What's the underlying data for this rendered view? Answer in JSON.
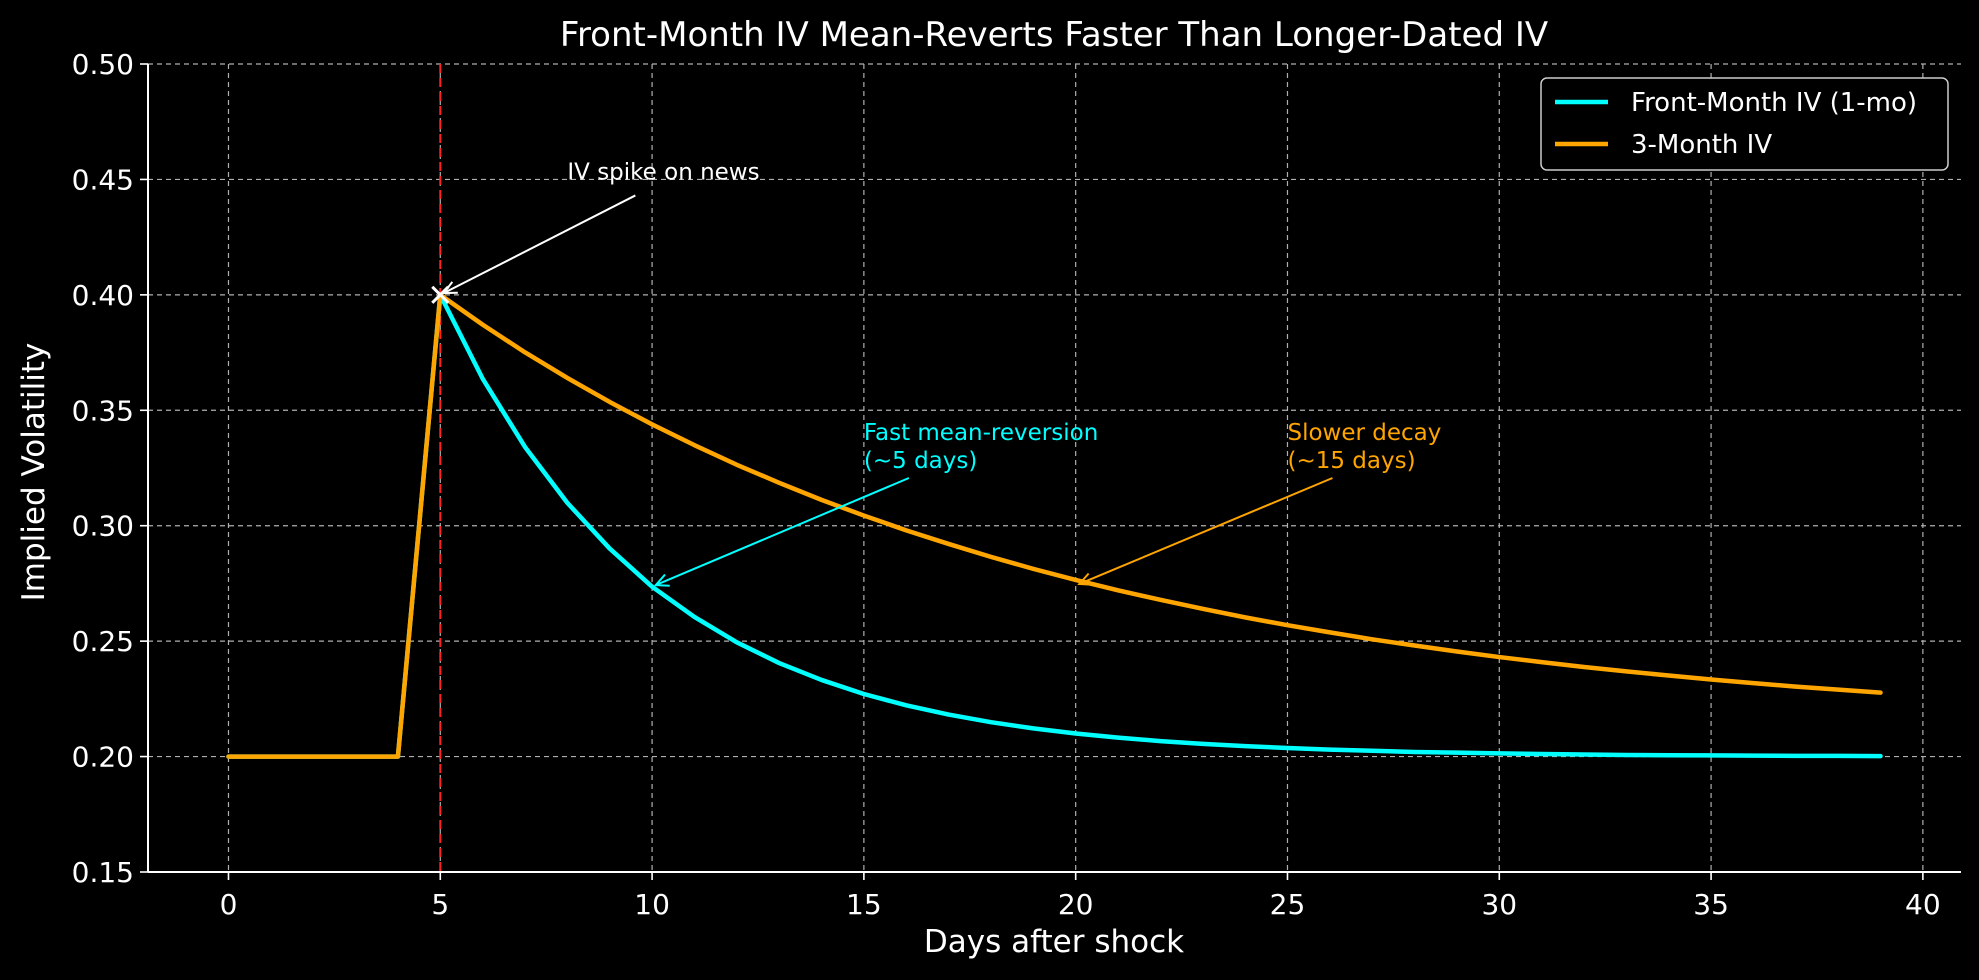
{
  "chart_data": {
    "type": "line",
    "title": "Front-Month IV Mean-Reverts Faster Than Longer-Dated IV",
    "xlabel": "Days after shock",
    "ylabel": "Implied Volatility",
    "xlim": [
      -1.9,
      40.9
    ],
    "ylim": [
      0.15,
      0.5
    ],
    "xticks": [
      0,
      5,
      10,
      15,
      20,
      25,
      30,
      35,
      40
    ],
    "yticks": [
      0.15,
      0.2,
      0.25,
      0.3,
      0.35,
      0.4,
      0.45,
      0.5
    ],
    "xtick_labels": [
      "0",
      "5",
      "10",
      "15",
      "20",
      "25",
      "30",
      "35",
      "40"
    ],
    "ytick_labels": [
      "0.15",
      "0.20",
      "0.25",
      "0.30",
      "0.35",
      "0.40",
      "0.45",
      "0.50"
    ],
    "grid": true,
    "legend_position": "top-right",
    "background": "#000000",
    "series": [
      {
        "name": "Front-Month IV (1-mo)",
        "color": "#00ffff",
        "x": [
          0,
          1,
          2,
          3,
          4,
          5,
          6,
          7,
          8,
          9,
          10,
          11,
          12,
          13,
          14,
          15,
          16,
          17,
          18,
          19,
          20,
          21,
          22,
          23,
          24,
          25,
          26,
          27,
          28,
          29,
          30,
          31,
          32,
          33,
          34,
          35,
          36,
          37,
          38,
          39
        ],
        "y": [
          0.2,
          0.2,
          0.2,
          0.2,
          0.2,
          0.4,
          0.3637,
          0.3341,
          0.3099,
          0.2901,
          0.2736,
          0.2605,
          0.2495,
          0.2405,
          0.2332,
          0.2271,
          0.2222,
          0.2182,
          0.2149,
          0.2122,
          0.21,
          0.2082,
          0.2067,
          0.2055,
          0.2045,
          0.2037,
          0.203,
          0.2025,
          0.202,
          0.2017,
          0.2014,
          0.2011,
          0.2009,
          0.2007,
          0.2006,
          0.2005,
          0.2004,
          0.2003,
          0.2003,
          0.2002
        ]
      },
      {
        "name": "3-Month IV",
        "color": "#ffa500",
        "x": [
          0,
          1,
          2,
          3,
          4,
          5,
          6,
          7,
          8,
          9,
          10,
          11,
          12,
          13,
          14,
          15,
          16,
          17,
          18,
          19,
          20,
          21,
          22,
          23,
          24,
          25,
          26,
          27,
          28,
          29,
          30,
          31,
          32,
          33,
          34,
          35,
          36,
          37,
          38,
          39
        ],
        "y": [
          0.2,
          0.2,
          0.2,
          0.2,
          0.2,
          0.4,
          0.3871,
          0.3751,
          0.364,
          0.3536,
          0.3439,
          0.3349,
          0.3264,
          0.3186,
          0.3112,
          0.3044,
          0.298,
          0.2921,
          0.2865,
          0.2813,
          0.2765,
          0.272,
          0.2679,
          0.264,
          0.2603,
          0.2569,
          0.2538,
          0.2508,
          0.2481,
          0.2455,
          0.2431,
          0.2409,
          0.2388,
          0.2369,
          0.2351,
          0.2334,
          0.2318,
          0.2303,
          0.229,
          0.2277
        ]
      }
    ],
    "reference_line": {
      "x": 5,
      "color": "#ff2020",
      "style": "dashed"
    },
    "marker": {
      "x": 5,
      "y": 0.4,
      "symbol": "x",
      "color": "#ffffff"
    },
    "annotations": [
      {
        "id": "spike",
        "lines": [
          "IV spike on news"
        ],
        "color": "#ffffff",
        "text_x": 8,
        "text_y": 0.45,
        "arrow_to": [
          5,
          0.4
        ]
      },
      {
        "id": "fast",
        "lines": [
          "Fast mean-reversion",
          "(~5 days)"
        ],
        "color": "#00ffff",
        "text_x": 15,
        "text_y": 0.325,
        "arrow_to": [
          10,
          0.2736
        ]
      },
      {
        "id": "slow",
        "lines": [
          "Slower decay",
          "(~15 days)"
        ],
        "color": "#ffa500",
        "text_x": 25,
        "text_y": 0.325,
        "arrow_to": [
          20,
          0.2741
        ]
      }
    ]
  }
}
